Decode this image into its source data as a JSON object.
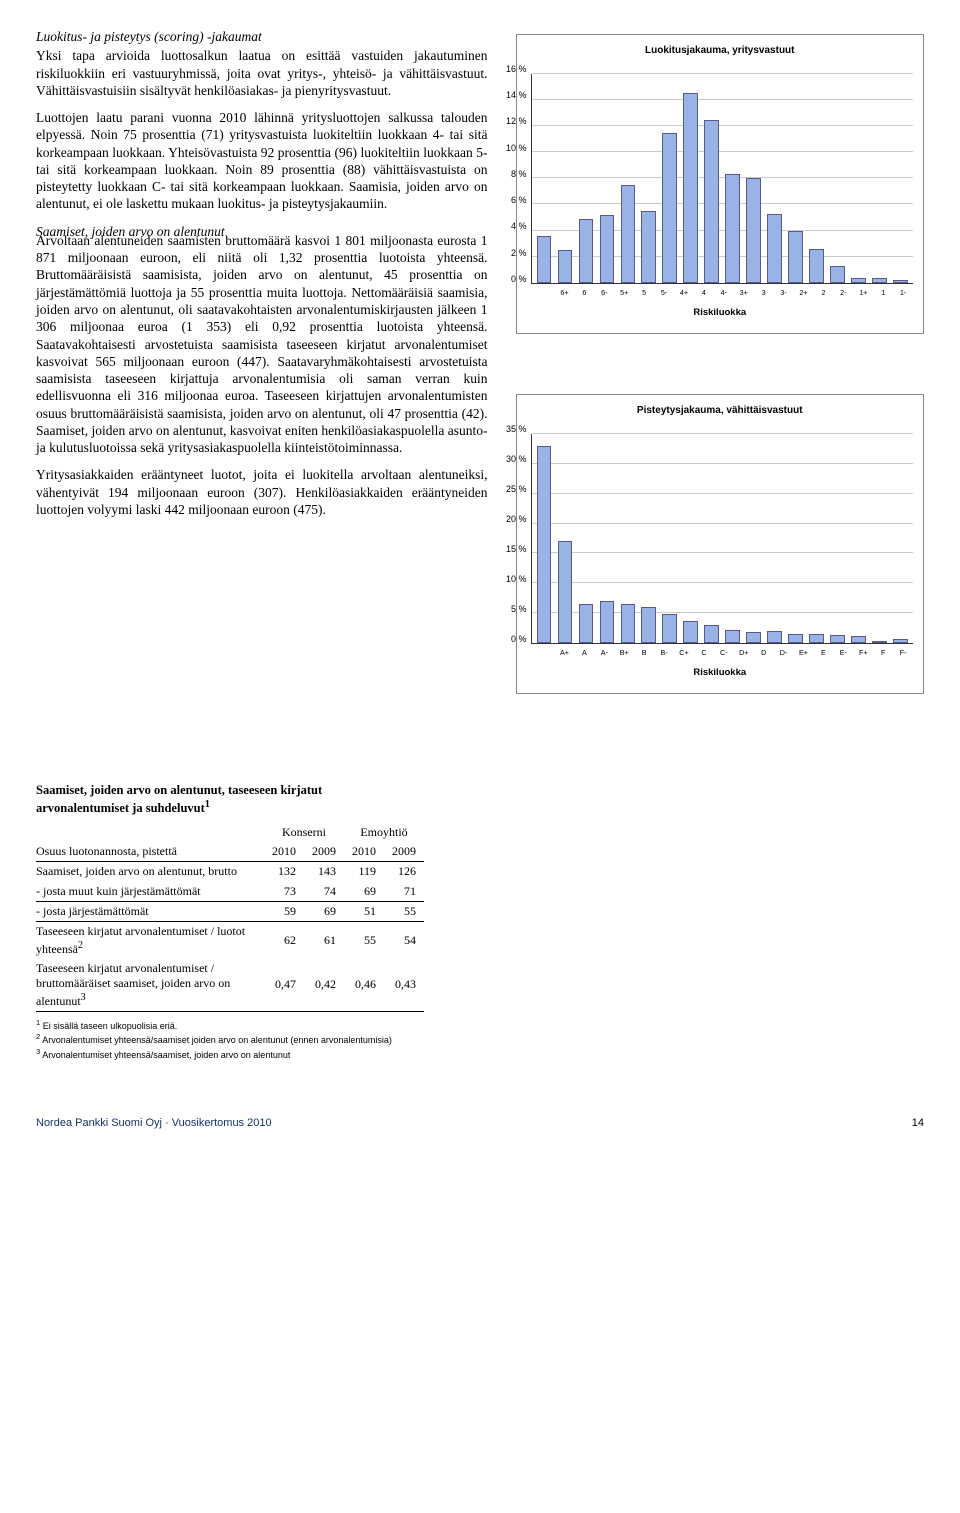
{
  "left": {
    "h1": "Luokitus- ja pisteytys (scoring) -jakaumat",
    "p1": "Yksi tapa arvioida luottosalkun laatua on esittää vastuiden jakautuminen riskiluokkiin eri vastuuryhmissä, joita ovat yritys-, yhteisö- ja vähittäisvastuut. Vähittäisvastuisiin sisältyvät henkilöasiakas- ja pienyritysvastuut.",
    "p2": "Luottojen laatu parani vuonna 2010 lähinnä yritysluottojen salkussa talouden elpyessä. Noin 75 prosenttia (71) yritysvastuista luokiteltiin luokkaan 4- tai sitä korkeampaan luokkaan. Yhteisövastuista 92 prosenttia (96) luokiteltiin luokkaan 5- tai sitä korkeampaan luokkaan. Noin 89 prosenttia (88) vähittäisvastuista on pisteytetty luokkaan C- tai sitä korkeampaan luokkaan. Saamisia, joiden arvo on alentunut, ei ole laskettu mukaan luokitus- ja pisteytysjakaumiin.",
    "h2": "Saamiset, joiden arvo on alentunut",
    "p3": "Arvoltaan alentuneiden saamisten bruttomäärä kasvoi 1 801 miljoonasta eurosta 1 871 miljoonaan euroon, eli niitä oli 1,32 prosenttia luotoista yhteensä. Bruttomääräisistä saamisista, joiden arvo on alentunut, 45 prosenttia on järjestämättömiä luottoja ja 55 prosenttia muita luottoja. Nettomääräisiä saamisia, joiden arvo on alentunut, oli saatavakohtaisten arvonalentumiskirjausten jälkeen 1 306 miljoonaa euroa (1 353) eli 0,92 prosenttia luotoista yhteensä. Saatavakohtaisesti arvostetuista saamisista taseeseen kirjatut arvonalentumiset kasvoivat 565 miljoonaan euroon (447). Saatavaryhmäkohtaisesti arvostetuista saamisista taseeseen kirjattuja arvonalentumisia oli saman verran kuin edellisvuonna eli 316 miljoonaa euroa. Taseeseen kirjattujen arvonalentumisten osuus bruttomääräisistä saamisista, joiden arvo on alentunut, oli 47 prosenttia (42). Saamiset, joiden arvo on alentunut, kasvoivat eniten henkilöasiakaspuolella asunto- ja kulutusluotoissa sekä yritysasiakaspuolella kiinteistötoiminnassa.",
    "p4": "Yritysasiakkaiden erääntyneet luotot, joita ei luokitella arvoltaan alentuneiksi, vähentyivät 194 miljoonaan euroon (307). Henkilöasiakkaiden erääntyneiden luottojen volyymi laski 442 miljoonaan euroon (475)."
  },
  "chart1": {
    "title": "Luokitusjakauma, yritysvastuut",
    "ylabel": "Riskiluokka",
    "ymax": 16,
    "ystep": 2,
    "bar_fill": "#9ab3e6",
    "bar_border": "#5a5a8a",
    "grid_color": "#cccccc",
    "categories": [
      "6+",
      "6",
      "6-",
      "5+",
      "5",
      "5-",
      "4+",
      "4",
      "4-",
      "3+",
      "3",
      "3-",
      "2+",
      "2",
      "2-",
      "1+",
      "1",
      "1-"
    ],
    "values": [
      3.6,
      2.5,
      4.9,
      5.2,
      7.5,
      5.5,
      11.5,
      14.5,
      12.5,
      8.3,
      8.0,
      5.3,
      4.0,
      2.6,
      1.3,
      0.4,
      0.4,
      0.2
    ]
  },
  "chart2": {
    "title": "Pisteytysjakauma, vähittäisvastuut",
    "ylabel": "Riskiluokka",
    "ymax": 35,
    "ystep": 5,
    "bar_fill": "#9ab3e6",
    "bar_border": "#5a5a8a",
    "grid_color": "#cccccc",
    "categories": [
      "A+",
      "A",
      "A-",
      "B+",
      "B",
      "B-",
      "C+",
      "C",
      "C-",
      "D+",
      "D",
      "D-",
      "E+",
      "E",
      "E-",
      "F+",
      "F",
      "F-"
    ],
    "values": [
      33,
      17,
      6.5,
      7.0,
      6.5,
      6.0,
      4.8,
      3.7,
      3.0,
      2.2,
      1.8,
      2.0,
      1.5,
      1.5,
      1.4,
      1.2,
      0.3,
      0.6
    ]
  },
  "table": {
    "title_l1": "Saamiset, joiden arvo on alentunut, taseeseen kirjatut",
    "title_l2": "arvonalentumiset ja suhdeluvut",
    "sup1": "1",
    "group1": "Konserni",
    "group2": "Emoyhtiö",
    "col_label": "Osuus luotonannosta, pistettä",
    "years": [
      "2010",
      "2009",
      "2010",
      "2009"
    ],
    "rows": [
      {
        "label": "Saamiset, joiden arvo on alentunut, brutto",
        "v": [
          "132",
          "143",
          "119",
          "126"
        ],
        "border": false
      },
      {
        "label": "- josta muut kuin järjestämättömät",
        "v": [
          "73",
          "74",
          "69",
          "71"
        ],
        "border": false
      },
      {
        "label": "- josta järjestämättömät",
        "v": [
          "59",
          "69",
          "51",
          "55"
        ],
        "border": true
      }
    ],
    "row4_label_a": "Taseeseen kirjatut arvonalentumiset / luotot yhteensä",
    "row4_sup": "2",
    "row4_v": [
      "62",
      "61",
      "55",
      "54"
    ],
    "row5_label_a": "Taseeseen kirjatut arvonalentumiset / bruttomääräiset saamiset, joiden arvo on alentunut",
    "row5_sup": "3",
    "row5_v": [
      "0,47",
      "0,42",
      "0,46",
      "0,43"
    ],
    "fn1": "Ei sisällä taseen ulkopuolisia eriä.",
    "fn2": "Arvonalentumiset yhteensä/saamiset joiden arvo on alentunut (ennen arvonalentumisia)",
    "fn3": "Arvonalentumiset yhteensä/saamiset, joiden arvo on alentunut"
  },
  "footer": {
    "left": "Nordea Pankki Suomi Oyj · Vuosikertomus 2010",
    "page": "14"
  }
}
